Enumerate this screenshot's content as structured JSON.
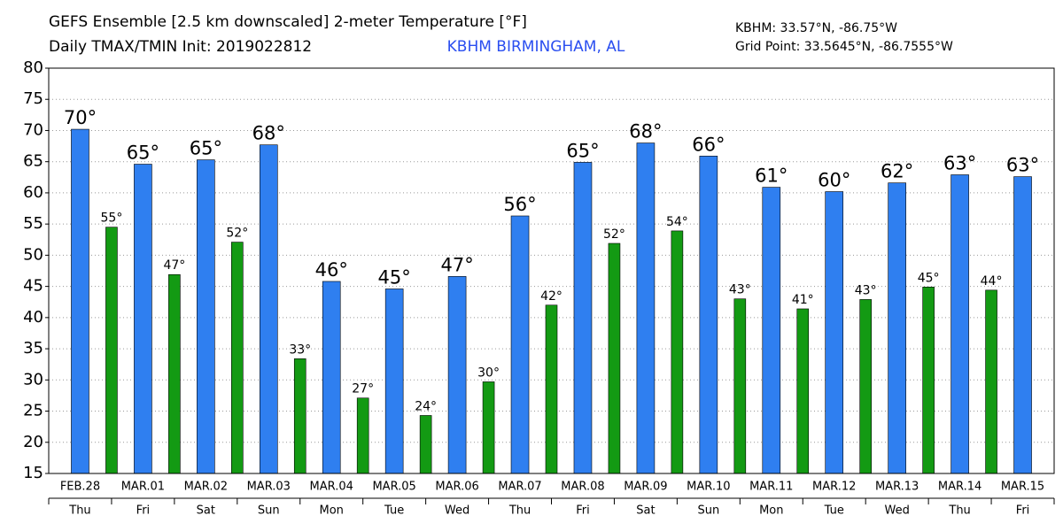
{
  "chart_data": {
    "type": "bar",
    "title": "GEFS Ensemble [2.5 km downscaled] 2-meter Temperature [°F]",
    "subtitle": "Daily TMAX/TMIN Init: 2019022812",
    "location": "KBHM BIRMINGHAM, AL",
    "station": "KBHM: 33.57°N, -86.75°W",
    "grid_point": "Grid Point: 33.5645°N, -86.7555°W",
    "categories": [
      "FEB.28",
      "MAR.01",
      "MAR.02",
      "MAR.03",
      "MAR.04",
      "MAR.05",
      "MAR.06",
      "MAR.07",
      "MAR.08",
      "MAR.09",
      "MAR.10",
      "MAR.11",
      "MAR.12",
      "MAR.13",
      "MAR.14",
      "MAR.15"
    ],
    "weekdays": [
      "Thu",
      "Fri",
      "Sat",
      "Sun",
      "Mon",
      "Tue",
      "Wed",
      "Thu",
      "Fri",
      "Sat",
      "Sun",
      "Mon",
      "Tue",
      "Wed",
      "Thu",
      "Fri"
    ],
    "series": [
      {
        "color": "#2f7ff0",
        "values": [
          70.2,
          64.6,
          65.3,
          67.7,
          45.8,
          44.6,
          46.6,
          56.3,
          64.9,
          68.0,
          65.9,
          60.9,
          60.2,
          61.6,
          62.9,
          62.6
        ],
        "value_labels": [
          "70°",
          "65°",
          "65°",
          "68°",
          "46°",
          "45°",
          "47°",
          "56°",
          "65°",
          "68°",
          "66°",
          "61°",
          "60°",
          "62°",
          "63°",
          "63°"
        ]
      },
      {
        "color": "#139a13",
        "values": [
          54.5,
          46.9,
          52.1,
          33.4,
          27.1,
          24.3,
          29.7,
          42.0,
          51.9,
          53.9,
          43.0,
          41.4,
          42.9,
          44.9,
          44.4,
          null
        ],
        "value_labels": [
          "55°",
          "47°",
          "52°",
          "33°",
          "27°",
          "24°",
          "30°",
          "42°",
          "52°",
          "54°",
          "43°",
          "41°",
          "43°",
          "45°",
          "44°",
          null
        ]
      }
    ],
    "ylim": [
      15,
      80
    ],
    "yticks": [
      15,
      20,
      25,
      30,
      35,
      40,
      45,
      50,
      55,
      60,
      65,
      70,
      75,
      80
    ],
    "grid": true
  }
}
